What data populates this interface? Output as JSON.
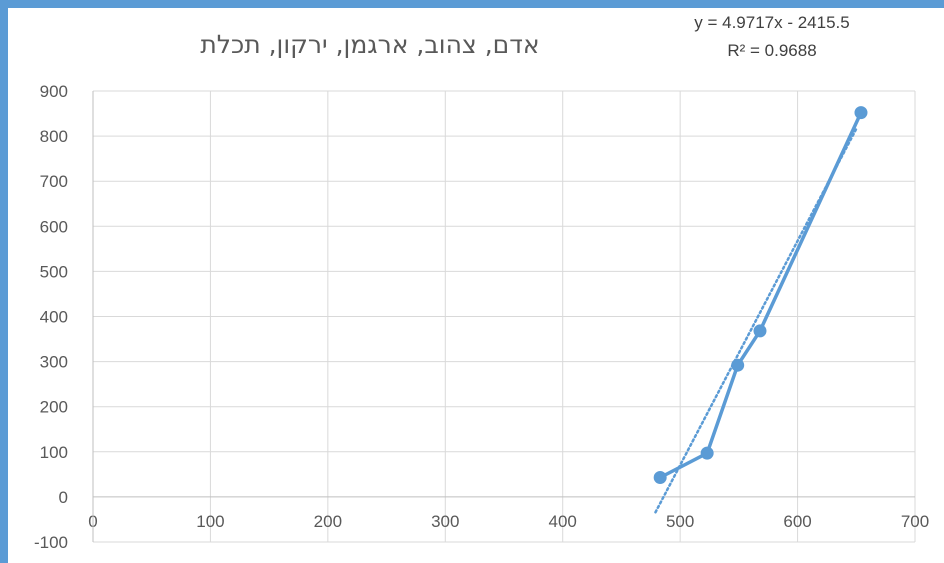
{
  "chart_data": {
    "type": "scatter",
    "title": "אדם, צהוב, ארגמן, ירקון, תכלת",
    "xlabel": "",
    "ylabel": "",
    "xlim": [
      0,
      700
    ],
    "ylim": [
      -100,
      900
    ],
    "x_ticks": [
      "0",
      "100",
      "200",
      "300",
      "400",
      "500",
      "600",
      "700"
    ],
    "y_ticks": [
      "900",
      "800",
      "700",
      "600",
      "500",
      "400",
      "300",
      "200",
      "100",
      "0",
      "-100"
    ],
    "grid": true,
    "legend": "none",
    "series": [
      {
        "points": [
          {
            "x": 483,
            "y": 43
          },
          {
            "x": 523,
            "y": 97
          },
          {
            "x": 549,
            "y": 292
          },
          {
            "x": 568,
            "y": 368
          },
          {
            "x": 654,
            "y": 852
          }
        ],
        "style": "line-with-markers",
        "color": "#5b9bd5"
      }
    ],
    "trendline": {
      "type": "linear",
      "style": "dotted",
      "color": "#5b9bd5",
      "slope": 4.9717,
      "intercept": -2415.5,
      "x_range": [
        479,
        650
      ],
      "equation_label": "y = 4.9717x - 2415.5",
      "r2_label": "R² = 0.9688"
    }
  }
}
